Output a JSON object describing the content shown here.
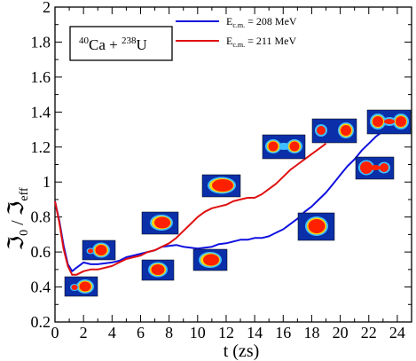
{
  "chart_data": {
    "type": "line",
    "xlabel": "t (zs)",
    "ylabel": {
      "main": "ℑ",
      "sub0": "0",
      "slash": " / ",
      "main2": "ℑ",
      "sub1": "eff"
    },
    "xlim": [
      0,
      25
    ],
    "ylim": [
      0.2,
      2.0
    ],
    "x_ticks": [
      0,
      2,
      4,
      6,
      8,
      10,
      12,
      14,
      16,
      18,
      20,
      22,
      24
    ],
    "y_ticks": [
      0.2,
      0.4,
      0.6,
      0.8,
      1.0,
      1.2,
      1.4,
      1.6,
      1.8,
      2.0
    ],
    "x_tick_labels": [
      "0",
      "2",
      "4",
      "6",
      "8",
      "10",
      "12",
      "14",
      "16",
      "18",
      "20",
      "22",
      "24"
    ],
    "y_tick_labels": [
      "0.2",
      "0.4",
      "0.6",
      "0.8",
      "1",
      "1.2",
      "1.4",
      "1.6",
      "1.8",
      "2"
    ],
    "reaction_label": {
      "z1": "40",
      "el1": "Ca",
      "plus": " + ",
      "z2": "238",
      "el2": "U"
    },
    "legend_position": "top-center",
    "series": [
      {
        "name": {
          "main": "E",
          "sub": "c.m.",
          "value": " = 208 MeV"
        },
        "color": "#1010e0",
        "x": [
          0,
          0.3,
          0.6,
          0.9,
          1.2,
          1.5,
          2.0,
          2.5,
          3.0,
          3.5,
          4.0,
          4.5,
          5.0,
          5.5,
          6.0,
          6.5,
          7.0,
          7.5,
          8.0,
          8.5,
          9.0,
          9.5,
          10.0,
          10.5,
          11.0,
          11.5,
          12.0,
          12.5,
          13.0,
          13.5,
          14.0,
          14.5,
          15.0,
          15.5,
          16.0,
          16.5,
          17.0,
          17.5,
          18.0,
          18.5,
          19.0,
          19.5,
          20.0,
          20.5,
          21.0,
          21.5,
          22.0,
          22.5,
          23.0
        ],
        "y": [
          0.89,
          0.78,
          0.64,
          0.53,
          0.49,
          0.51,
          0.54,
          0.53,
          0.53,
          0.535,
          0.54,
          0.55,
          0.57,
          0.58,
          0.59,
          0.6,
          0.61,
          0.63,
          0.635,
          0.64,
          0.63,
          0.625,
          0.62,
          0.625,
          0.63,
          0.645,
          0.65,
          0.66,
          0.67,
          0.67,
          0.68,
          0.68,
          0.69,
          0.71,
          0.73,
          0.76,
          0.79,
          0.83,
          0.86,
          0.9,
          0.94,
          0.99,
          1.04,
          1.09,
          1.13,
          1.18,
          1.22,
          1.26,
          1.29
        ]
      },
      {
        "name": {
          "main": "E",
          "sub": "c.m.",
          "value": " = 211 MeV"
        },
        "color": "#e01010",
        "x": [
          0,
          0.3,
          0.6,
          0.9,
          1.2,
          1.5,
          2.0,
          2.5,
          3.0,
          3.5,
          4.0,
          4.5,
          5.0,
          5.5,
          6.0,
          6.5,
          7.0,
          7.5,
          8.0,
          8.5,
          9.0,
          9.5,
          10.0,
          10.5,
          11.0,
          11.5,
          12.0,
          12.5,
          13.0,
          13.5,
          14.0,
          14.5,
          15.0,
          15.5,
          16.0,
          16.5,
          17.0,
          17.5,
          18.0,
          18.5,
          19.0
        ],
        "y": [
          0.89,
          0.77,
          0.62,
          0.52,
          0.47,
          0.47,
          0.49,
          0.5,
          0.5,
          0.51,
          0.52,
          0.54,
          0.56,
          0.57,
          0.58,
          0.6,
          0.61,
          0.63,
          0.65,
          0.68,
          0.72,
          0.76,
          0.8,
          0.83,
          0.85,
          0.86,
          0.87,
          0.89,
          0.9,
          0.91,
          0.91,
          0.93,
          0.96,
          0.99,
          1.03,
          1.07,
          1.1,
          1.13,
          1.16,
          1.19,
          1.22
        ]
      }
    ]
  }
}
